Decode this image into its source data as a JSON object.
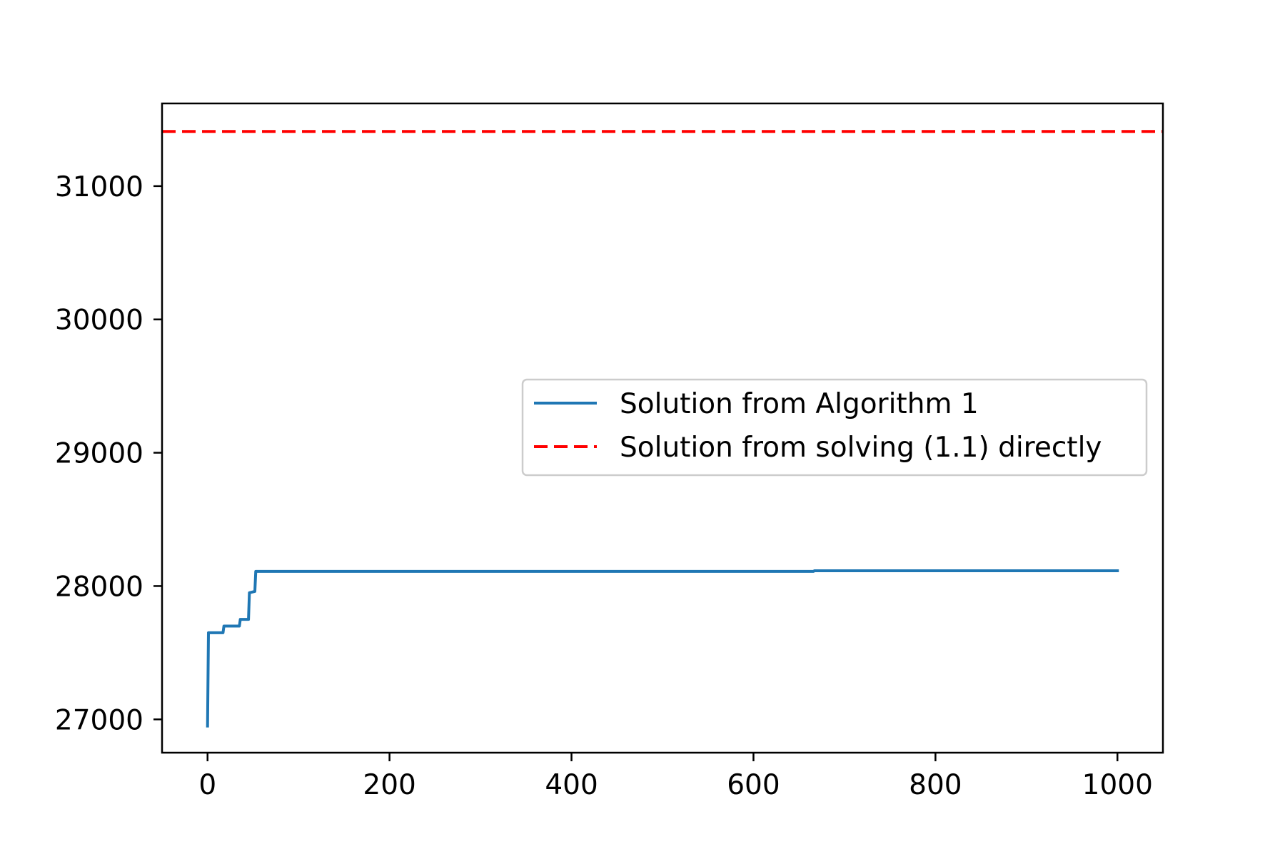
{
  "chart_data": {
    "type": "line",
    "title": "",
    "xlabel": "",
    "ylabel": "",
    "xlim": [
      -50,
      1050
    ],
    "ylim": [
      26750,
      31620
    ],
    "x_ticks": [
      0,
      200,
      400,
      600,
      800,
      1000
    ],
    "x_tick_labels": [
      "0",
      "200",
      "400",
      "600",
      "800",
      "1000"
    ],
    "y_ticks": [
      27000,
      28000,
      29000,
      30000,
      31000
    ],
    "y_tick_labels": [
      "27000",
      "28000",
      "29000",
      "30000",
      "31000"
    ],
    "grid": false,
    "legend": {
      "placement": "center-right"
    },
    "series": [
      {
        "name": "Solution from Algorithm 1",
        "color": "#1f77b4",
        "style": "solid",
        "x": [
          0,
          1,
          17,
          18,
          35,
          36,
          45,
          46,
          52,
          53,
          666,
          667,
          1000
        ],
        "y": [
          26950,
          27650,
          27650,
          27700,
          27700,
          27750,
          27750,
          27950,
          27960,
          28110,
          28110,
          28115,
          28115
        ]
      },
      {
        "name": "Solution from solving (1.1) directly",
        "color": "#ff0000",
        "style": "dashed",
        "x": [
          -50,
          1050
        ],
        "y": [
          31410,
          31410
        ]
      }
    ]
  }
}
